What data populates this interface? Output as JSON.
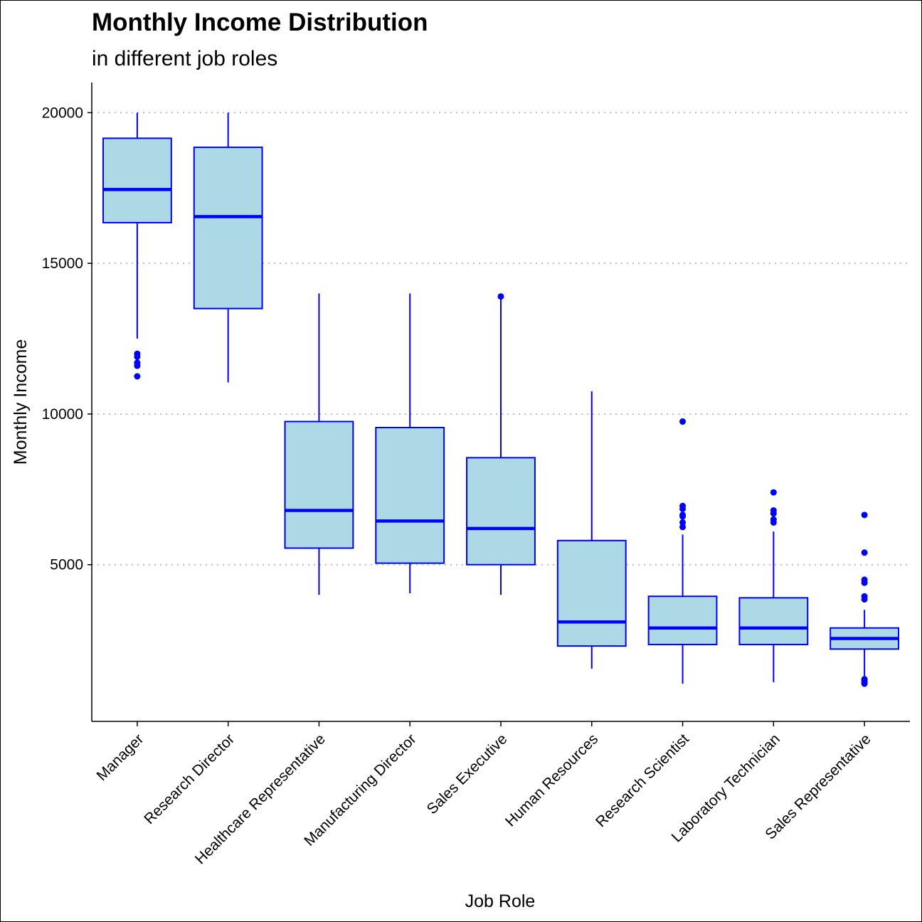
{
  "chart_data": {
    "type": "boxplot",
    "title": "Monthly Income Distribution",
    "subtitle": "in different job roles",
    "xlabel": "Job Role",
    "ylabel": "Monthly Income",
    "ylim": [
      -200,
      21000
    ],
    "yticks": [
      5000,
      10000,
      15000,
      20000
    ],
    "ytick_labels": [
      "5000",
      "10000",
      "15000",
      "20000"
    ],
    "grid": "horizontal dotted",
    "colors": {
      "box_fill": "#add8e6",
      "box_stroke": "#0000ff",
      "grid": "#bebebe"
    },
    "categories": [
      "Manager",
      "Research Director",
      "Healthcare Representative",
      "Manufacturing Director",
      "Sales Executive",
      "Human Resources",
      "Research Scientist",
      "Laboratory Technician",
      "Sales Representative"
    ],
    "boxes": [
      {
        "whisker_low": 12500,
        "q1": 16350,
        "median": 17450,
        "q3": 19150,
        "whisker_high": 20000,
        "outliers": [
          11250,
          11600,
          11700,
          11900,
          12000
        ]
      },
      {
        "whisker_low": 11050,
        "q1": 13500,
        "median": 16550,
        "q3": 18850,
        "whisker_high": 20000,
        "outliers": []
      },
      {
        "whisker_low": 4000,
        "q1": 5550,
        "median": 6800,
        "q3": 9750,
        "whisker_high": 14000,
        "outliers": []
      },
      {
        "whisker_low": 4050,
        "q1": 5050,
        "median": 6450,
        "q3": 9550,
        "whisker_high": 14000,
        "outliers": []
      },
      {
        "whisker_low": 4000,
        "q1": 5000,
        "median": 6200,
        "q3": 8550,
        "whisker_high": 13850,
        "outliers": [
          13900
        ]
      },
      {
        "whisker_low": 1550,
        "q1": 2300,
        "median": 3100,
        "q3": 5800,
        "whisker_high": 10750,
        "outliers": []
      },
      {
        "whisker_low": 1050,
        "q1": 2350,
        "median": 2900,
        "q3": 3950,
        "whisker_high": 6000,
        "outliers": [
          6250,
          6400,
          6600,
          6650,
          6850,
          6950,
          9750
        ]
      },
      {
        "whisker_low": 1100,
        "q1": 2350,
        "median": 2900,
        "q3": 3900,
        "whisker_high": 6100,
        "outliers": [
          6400,
          6500,
          6700,
          6800,
          7400
        ]
      },
      {
        "whisker_low": 1150,
        "q1": 2200,
        "median": 2550,
        "q3": 2900,
        "whisker_high": 3500,
        "outliers": [
          1050,
          1100,
          1150,
          1200,
          3850,
          3950,
          4400,
          4500,
          5400,
          6650
        ]
      }
    ]
  }
}
